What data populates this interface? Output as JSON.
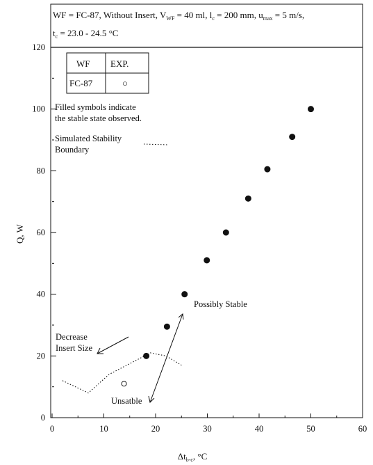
{
  "chart_data": {
    "type": "scatter",
    "header_line1": "WF = FC-87, Without Insert, V",
    "header_line1_sub1": "WF",
    "header_line1_mid": " = 40 ml, l",
    "header_line1_sub2": "c",
    "header_line1_mid2": " = 200 mm, u",
    "header_line1_sub3": "max",
    "header_line1_end": " = 5 m/s,",
    "header_line2_pre": "t",
    "header_line2_sub": "c",
    "header_line2_end": " = 23.0 - 24.5 °C",
    "xlabel": "Δt",
    "xlabel_sub": "b-c",
    "xlabel_unit": ", °C",
    "ylabel": "Q, W",
    "xlim": [
      0,
      60
    ],
    "ylim": [
      0,
      120
    ],
    "x_ticks": [
      "0",
      "10",
      "20",
      "30",
      "40",
      "50",
      "60"
    ],
    "y_ticks": [
      "0",
      "20",
      "40",
      "60",
      "80",
      "100",
      "120"
    ],
    "legend": {
      "col_wf": "WF",
      "col_exp": "EXP.",
      "row_wf": "FC-87",
      "row_symbol": "○"
    },
    "note_line1": "Filled symbols indicate",
    "note_line2": "the stable state observed.",
    "sim_label_line1": "Simulated Stability",
    "sim_label_line2": "Boundary",
    "annotations": {
      "decrease_line1": "Decrease",
      "decrease_line2": "Insert Size",
      "possibly_stable": "Possibly Stable",
      "unstable": "Unsatble"
    },
    "stable_points": [
      {
        "x": 18.2,
        "y": 20
      },
      {
        "x": 22.2,
        "y": 29.5
      },
      {
        "x": 25.6,
        "y": 40
      },
      {
        "x": 29.9,
        "y": 51
      },
      {
        "x": 33.6,
        "y": 60
      },
      {
        "x": 37.9,
        "y": 71
      },
      {
        "x": 41.6,
        "y": 80.5
      },
      {
        "x": 46.4,
        "y": 91
      },
      {
        "x": 50,
        "y": 100
      }
    ],
    "unstable_points": [
      {
        "x": 13.9,
        "y": 11
      }
    ],
    "boundary": [
      {
        "x": 2,
        "y": 12
      },
      {
        "x": 7,
        "y": 8
      },
      {
        "x": 11,
        "y": 14
      },
      {
        "x": 15,
        "y": 17.5
      },
      {
        "x": 19,
        "y": 21
      },
      {
        "x": 22,
        "y": 20
      },
      {
        "x": 25,
        "y": 17
      }
    ]
  }
}
